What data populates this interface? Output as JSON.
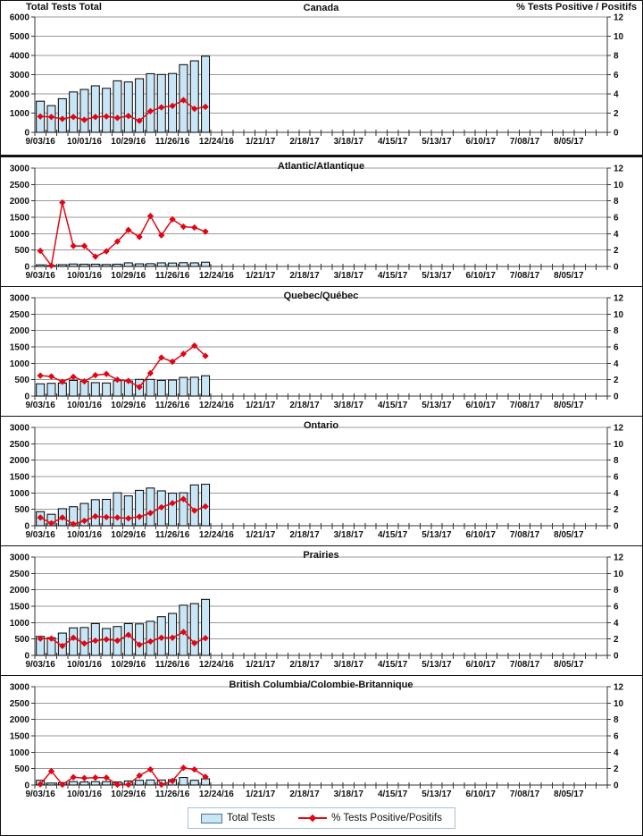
{
  "page": {
    "left_axis_title": "Total Tests Total",
    "right_axis_title": "% Tests Positive / Positifs"
  },
  "legend": {
    "bars_label": "Total Tests",
    "line_label": "% Tests Positive/Positifs"
  },
  "colors": {
    "bar_fill": "#C9E6F7",
    "bar_stroke": "#000000",
    "line_color": "#DF0713",
    "grid_color": "#999999",
    "axis_color": "#333333",
    "text_color": "#111111"
  },
  "x_axis": {
    "tick_labels": [
      "9/03/16",
      "10/01/16",
      "10/29/16",
      "11/26/16",
      "12/24/16",
      "1/21/17",
      "2/18/17",
      "3/18/17",
      "4/15/17",
      "5/13/17",
      "6/10/17",
      "7/08/17",
      "8/05/17"
    ],
    "label_every_n_weeks": 4,
    "total_weeks": 52
  },
  "chart_data": [
    {
      "id": "canada",
      "type": "bar+line",
      "title": "Canada",
      "left_axis": {
        "label": "Total Tests Total",
        "min": 0,
        "max": 6000,
        "step": 1000
      },
      "right_axis": {
        "label": "% Tests Positive / Positifs",
        "min": 0,
        "max": 12,
        "step": 2
      },
      "bar_series": "Total Tests",
      "bars": [
        1620,
        1390,
        1750,
        2100,
        2230,
        2420,
        2290,
        2680,
        2620,
        2790,
        3050,
        3010,
        3060,
        3520,
        3720,
        3960
      ],
      "line_series": "% Tests Positive/Positifs",
      "pct": [
        1.65,
        1.6,
        1.4,
        1.6,
        1.3,
        1.6,
        1.65,
        1.5,
        1.7,
        1.2,
        2.2,
        2.6,
        2.75,
        3.35,
        2.45,
        2.65
      ]
    },
    {
      "id": "atlantic",
      "type": "bar+line",
      "title": "Atlantic/Atlantique",
      "left_axis": {
        "min": 0,
        "max": 3000,
        "step": 500
      },
      "right_axis": {
        "min": 0,
        "max": 12,
        "step": 2
      },
      "bar_series": "Total Tests",
      "bars": [
        50,
        30,
        55,
        75,
        70,
        70,
        60,
        70,
        110,
        80,
        85,
        110,
        105,
        115,
        110,
        130
      ],
      "line_series": "% Tests Positive/Positifs",
      "pct": [
        1.9,
        0.1,
        7.8,
        2.5,
        2.5,
        1.2,
        1.85,
        3.05,
        4.45,
        3.6,
        6.15,
        3.8,
        5.75,
        4.85,
        4.75,
        4.25
      ]
    },
    {
      "id": "quebec",
      "type": "bar+line",
      "title": "Quebec/Québec",
      "left_axis": {
        "min": 0,
        "max": 3000,
        "step": 500
      },
      "right_axis": {
        "min": 0,
        "max": 12,
        "step": 2
      },
      "bar_series": "Total Tests",
      "bars": [
        375,
        390,
        400,
        480,
        450,
        410,
        400,
        470,
        460,
        510,
        510,
        480,
        490,
        570,
        575,
        620
      ],
      "line_series": "% Tests Positive/Positifs",
      "pct": [
        2.5,
        2.4,
        1.75,
        2.35,
        1.8,
        2.55,
        2.7,
        2.0,
        1.85,
        1.1,
        2.8,
        4.7,
        4.2,
        5.15,
        6.15,
        4.9
      ]
    },
    {
      "id": "ontario",
      "type": "bar+line",
      "title": "Ontario",
      "left_axis": {
        "min": 0,
        "max": 3000,
        "step": 500
      },
      "right_axis": {
        "min": 0,
        "max": 12,
        "step": 2
      },
      "bar_series": "Total Tests",
      "bars": [
        430,
        350,
        520,
        580,
        680,
        795,
        805,
        1005,
        910,
        1080,
        1150,
        1065,
        995,
        1005,
        1245,
        1265
      ],
      "line_series": "% Tests Positive/Positifs",
      "pct": [
        1.0,
        0.3,
        1.0,
        0.2,
        0.6,
        1.15,
        1.05,
        1.0,
        0.9,
        1.1,
        1.55,
        2.25,
        2.75,
        3.25,
        1.85,
        2.35
      ]
    },
    {
      "id": "prairies",
      "type": "bar+line",
      "title": "Prairies",
      "left_axis": {
        "min": 0,
        "max": 3000,
        "step": 500
      },
      "right_axis": {
        "min": 0,
        "max": 12,
        "step": 2
      },
      "bar_series": "Total Tests",
      "bars": [
        580,
        540,
        680,
        840,
        850,
        970,
        820,
        880,
        970,
        960,
        1040,
        1180,
        1280,
        1530,
        1580,
        1710
      ],
      "line_series": "% Tests Positive/Positifs",
      "pct": [
        2.05,
        2.05,
        1.15,
        2.15,
        1.45,
        1.8,
        1.95,
        1.8,
        2.5,
        1.3,
        1.7,
        2.15,
        2.15,
        2.85,
        1.5,
        2.1
      ]
    },
    {
      "id": "british-columbia",
      "type": "bar+line",
      "title": "British Columbia/Colombie-Britannique",
      "left_axis": {
        "min": 0,
        "max": 3000,
        "step": 500
      },
      "right_axis": {
        "min": 0,
        "max": 12,
        "step": 2
      },
      "bar_series": "Total Tests",
      "bars": [
        145,
        60,
        70,
        105,
        95,
        105,
        105,
        95,
        125,
        145,
        155,
        155,
        165,
        230,
        145,
        190
      ],
      "line_series": "% Tests Positive/Positifs",
      "pct": [
        0.1,
        1.7,
        0.05,
        0.95,
        0.85,
        0.9,
        0.9,
        0.05,
        0.05,
        1.15,
        1.9,
        0.05,
        0.5,
        2.1,
        1.9,
        1.0
      ]
    }
  ]
}
